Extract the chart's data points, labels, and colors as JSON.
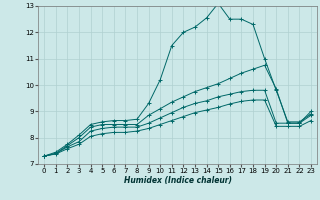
{
  "title": "",
  "xlabel": "Humidex (Indice chaleur)",
  "ylabel": "",
  "bg_color": "#cce8e8",
  "grid_color": "#b0d0d0",
  "line_color": "#006868",
  "xlim": [
    -0.5,
    23.5
  ],
  "ylim": [
    7,
    13
  ],
  "xticks": [
    0,
    1,
    2,
    3,
    4,
    5,
    6,
    7,
    8,
    9,
    10,
    11,
    12,
    13,
    14,
    15,
    16,
    17,
    18,
    19,
    20,
    21,
    22,
    23
  ],
  "yticks": [
    7,
    8,
    9,
    10,
    11,
    12,
    13
  ],
  "series": [
    {
      "x": [
        0,
        1,
        2,
        3,
        4,
        5,
        6,
        7,
        8,
        9,
        10,
        11,
        12,
        13,
        14,
        15,
        16,
        17,
        18,
        19,
        20,
        21,
        22,
        23
      ],
      "y": [
        7.3,
        7.45,
        7.75,
        8.1,
        8.5,
        8.6,
        8.65,
        8.65,
        8.7,
        9.3,
        10.2,
        11.5,
        12.0,
        12.2,
        12.55,
        13.1,
        12.5,
        12.5,
        12.3,
        11.0,
        9.8,
        8.6,
        8.6,
        8.9
      ]
    },
    {
      "x": [
        0,
        1,
        2,
        3,
        4,
        5,
        6,
        7,
        8,
        9,
        10,
        11,
        12,
        13,
        14,
        15,
        16,
        17,
        18,
        19,
        20,
        21,
        22,
        23
      ],
      "y": [
        7.3,
        7.4,
        7.7,
        8.0,
        8.4,
        8.5,
        8.5,
        8.5,
        8.5,
        8.85,
        9.1,
        9.35,
        9.55,
        9.75,
        9.9,
        10.05,
        10.25,
        10.45,
        10.6,
        10.75,
        9.85,
        8.55,
        8.55,
        9.0
      ]
    },
    {
      "x": [
        0,
        1,
        2,
        3,
        4,
        5,
        6,
        7,
        8,
        9,
        10,
        11,
        12,
        13,
        14,
        15,
        16,
        17,
        18,
        19,
        20,
        21,
        22,
        23
      ],
      "y": [
        7.3,
        7.4,
        7.65,
        7.85,
        8.25,
        8.35,
        8.4,
        8.4,
        8.4,
        8.55,
        8.75,
        8.95,
        9.15,
        9.3,
        9.4,
        9.55,
        9.65,
        9.75,
        9.8,
        9.8,
        8.55,
        8.55,
        8.55,
        8.85
      ]
    },
    {
      "x": [
        0,
        1,
        2,
        3,
        4,
        5,
        6,
        7,
        8,
        9,
        10,
        11,
        12,
        13,
        14,
        15,
        16,
        17,
        18,
        19,
        20,
        21,
        22,
        23
      ],
      "y": [
        7.3,
        7.38,
        7.58,
        7.75,
        8.05,
        8.15,
        8.2,
        8.2,
        8.25,
        8.35,
        8.5,
        8.65,
        8.8,
        8.95,
        9.05,
        9.15,
        9.28,
        9.38,
        9.43,
        9.43,
        8.43,
        8.43,
        8.43,
        8.65
      ]
    }
  ]
}
